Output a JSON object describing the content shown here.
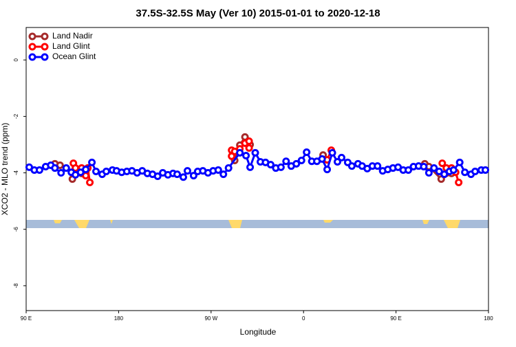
{
  "chart_data": {
    "type": "line",
    "title": "37.5S-32.5S May (Ver 10)   2015-01-01 to 2020-12-18",
    "x_label": "Longitude",
    "y_label": "XCO2 - MLO trend (ppm)",
    "xlim": [
      90,
      540
    ],
    "ylim": [
      -8.88,
      1.15
    ],
    "xticks": [
      {
        "value": 90,
        "label": "90 E"
      },
      {
        "value": 180,
        "label": "180"
      },
      {
        "value": 270,
        "label": "90 W"
      },
      {
        "value": 360,
        "label": "0"
      },
      {
        "value": 450,
        "label": "90 E"
      },
      {
        "value": 540,
        "label": "180"
      }
    ],
    "yticks": [
      0,
      -2,
      -4,
      -6,
      -8
    ],
    "legend": "top-left",
    "series": [
      {
        "name": "Land Nadir",
        "color": "#a52a2a",
        "x": [
          118,
          123,
          null,
          135,
          144,
          148,
          null,
          293,
          298,
          303,
          308,
          null,
          379,
          null,
          478,
          482,
          494,
          504
        ],
        "values": [
          -3.68,
          -3.73,
          null,
          -4.22,
          -4.02,
          -4.0,
          null,
          -3.56,
          -3.02,
          -2.73,
          -3.0,
          null,
          -3.37,
          null,
          -3.68,
          -3.78,
          -4.22,
          -4.02
        ]
      },
      {
        "name": "Land Glint",
        "color": "#ff0000",
        "x": [
          136,
          138,
          144,
          148,
          150,
          152,
          null,
          290,
          290,
          293,
          298,
          303,
          307,
          307,
          null,
          383,
          387,
          null,
          495,
          499,
          504,
          508,
          511
        ],
        "values": [
          -3.66,
          -3.83,
          -3.83,
          -4.1,
          -3.83,
          -4.34,
          null,
          -3.2,
          -3.41,
          -3.24,
          -3.15,
          -2.95,
          -2.88,
          -3.12,
          null,
          -3.54,
          -3.2,
          null,
          -3.66,
          -3.83,
          -3.83,
          -3.98,
          -4.34
        ]
      },
      {
        "name": "Ocean Glint",
        "color": "#0000ff",
        "x": [
          93,
          98,
          103,
          109,
          114,
          118,
          124,
          129,
          134,
          138,
          143,
          148,
          154,
          158,
          164,
          168,
          174,
          178,
          183,
          188,
          193,
          198,
          203,
          208,
          213,
          218,
          223,
          228,
          233,
          237,
          243,
          247,
          253,
          257,
          262,
          267,
          272,
          277,
          282,
          287,
          298,
          304,
          308,
          313,
          318,
          323,
          328,
          333,
          338,
          343,
          348,
          353,
          358,
          363,
          368,
          373,
          378,
          383,
          388,
          393,
          397,
          403,
          407,
          413,
          417,
          422,
          427,
          432,
          437,
          442,
          447,
          452,
          457,
          462,
          467,
          472,
          477,
          482,
          487,
          492,
          497,
          502,
          506,
          512,
          517,
          523,
          527,
          533,
          537
        ],
        "values": [
          -3.8,
          -3.9,
          -3.9,
          -3.78,
          -3.73,
          -3.83,
          -4.0,
          -3.83,
          -3.98,
          -4.07,
          -3.98,
          -3.88,
          -3.63,
          -3.95,
          -4.05,
          -3.95,
          -3.9,
          -3.93,
          -3.98,
          -3.95,
          -3.93,
          -4.0,
          -3.93,
          -4.02,
          -4.05,
          -4.12,
          -4.0,
          -4.07,
          -4.02,
          -4.05,
          -4.15,
          -3.93,
          -4.1,
          -3.95,
          -3.93,
          -4.0,
          -3.93,
          -3.9,
          -4.05,
          -3.83,
          -3.29,
          -3.39,
          -3.8,
          -3.29,
          -3.61,
          -3.63,
          -3.71,
          -3.83,
          -3.8,
          -3.59,
          -3.76,
          -3.68,
          -3.56,
          -3.27,
          -3.59,
          -3.59,
          -3.51,
          -3.88,
          -3.29,
          -3.61,
          -3.46,
          -3.63,
          -3.76,
          -3.68,
          -3.76,
          -3.85,
          -3.76,
          -3.76,
          -3.93,
          -3.88,
          -3.83,
          -3.8,
          -3.9,
          -3.9,
          -3.78,
          -3.76,
          -3.78,
          -4.0,
          -3.83,
          -3.95,
          -4.05,
          -3.95,
          -3.9,
          -3.63,
          -3.98,
          -4.05,
          -3.95,
          -3.9,
          -3.9
        ]
      }
    ]
  }
}
